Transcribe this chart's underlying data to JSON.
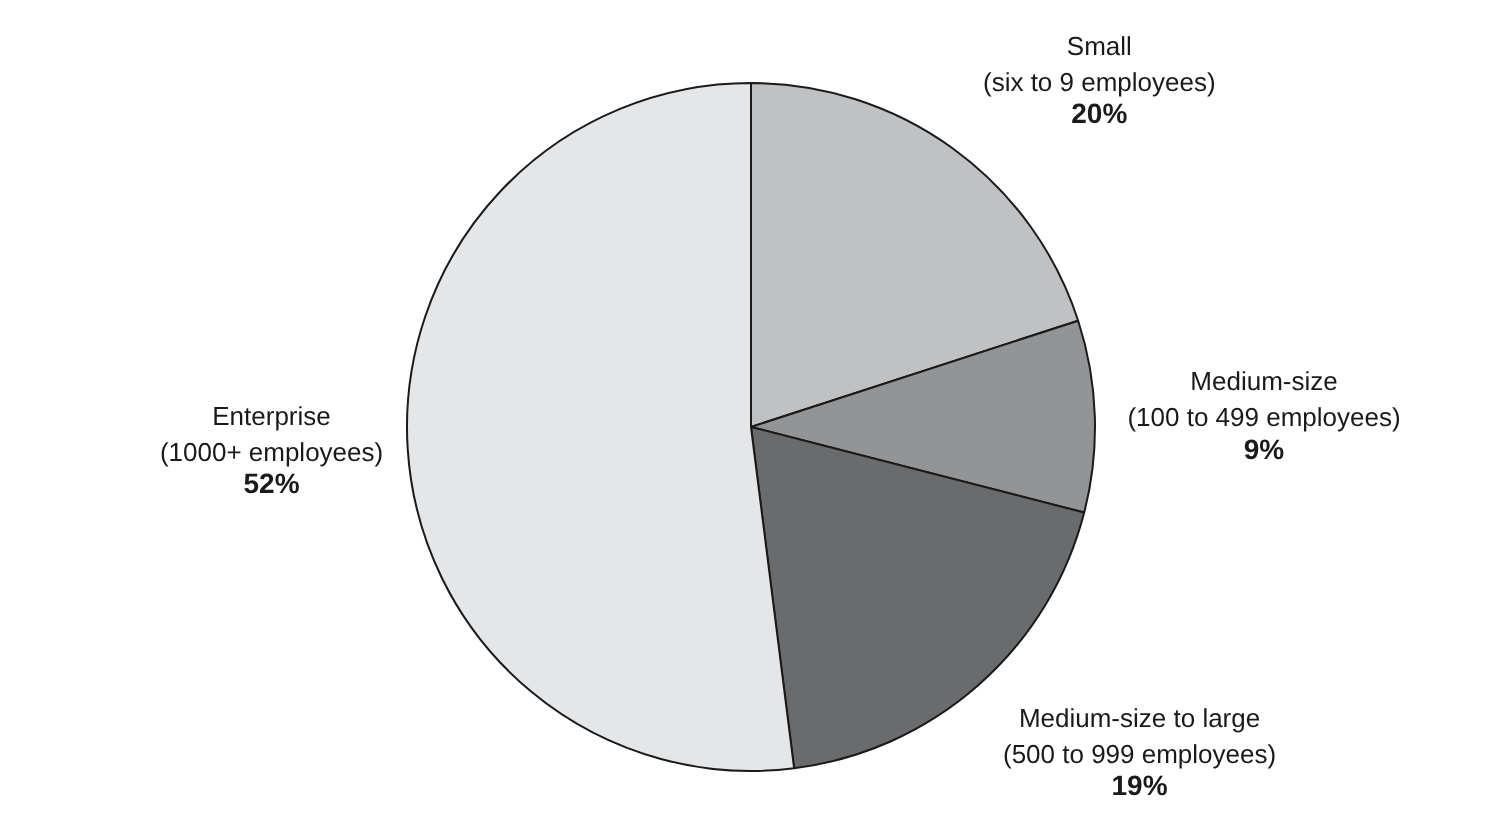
{
  "chart_data": {
    "type": "pie",
    "categories": [
      "Small\n(six to 9 employees)",
      "Medium-size\n(100 to 499 employees)",
      "Medium-size to large\n(500 to 999 employees)",
      "Enterprise\n(1000+ employees)"
    ],
    "values": [
      20,
      9,
      19,
      52
    ],
    "colors": [
      "#c0c1c3",
      "#939496",
      "#6a6b6d",
      "#e5e6e7"
    ],
    "value_labels": [
      "20%",
      "9%",
      "19%",
      "52%"
    ]
  }
}
